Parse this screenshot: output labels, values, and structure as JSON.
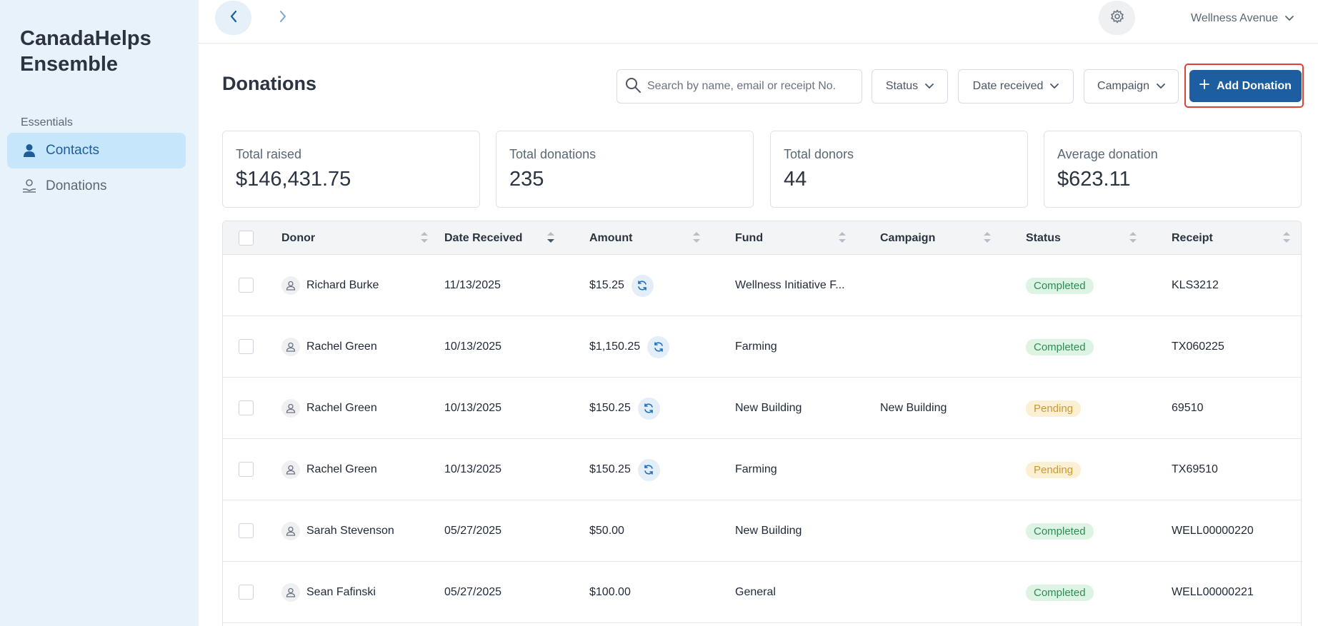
{
  "sidebar": {
    "brand": "CanadaHelps Ensemble",
    "section_label": "Essentials",
    "items": [
      {
        "label": "Contacts",
        "icon": "person-icon",
        "active": true
      },
      {
        "label": "Donations",
        "icon": "hand-donation-icon",
        "active": false
      }
    ]
  },
  "topbar": {
    "org_name": "Wellness Avenue"
  },
  "header": {
    "title": "Donations",
    "search_placeholder": "Search by name, email or receipt No.",
    "filters": {
      "status": "Status",
      "date_received": "Date received",
      "campaign": "Campaign"
    },
    "add_button": "Add Donation"
  },
  "stats": [
    {
      "label": "Total raised",
      "value": "$146,431.75"
    },
    {
      "label": "Total donations",
      "value": "235"
    },
    {
      "label": "Total donors",
      "value": "44"
    },
    {
      "label": "Average donation",
      "value": "$623.11"
    }
  ],
  "table": {
    "columns": [
      "Donor",
      "Date Received",
      "Amount",
      "Fund",
      "Campaign",
      "Status",
      "Receipt"
    ],
    "rows": [
      {
        "donor": "Richard Burke",
        "date": "11/13/2025",
        "amount": "$15.25",
        "recurring": true,
        "fund": "Wellness Initiative F...",
        "campaign": "",
        "status": "Completed",
        "receipt": "KLS3212"
      },
      {
        "donor": "Rachel Green",
        "date": "10/13/2025",
        "amount": "$1,150.25",
        "recurring": true,
        "fund": "Farming",
        "campaign": "",
        "status": "Completed",
        "receipt": "TX060225"
      },
      {
        "donor": "Rachel Green",
        "date": "10/13/2025",
        "amount": "$150.25",
        "recurring": true,
        "fund": "New Building",
        "campaign": "New Building",
        "status": "Pending",
        "receipt": "69510"
      },
      {
        "donor": "Rachel Green",
        "date": "10/13/2025",
        "amount": "$150.25",
        "recurring": true,
        "fund": "Farming",
        "campaign": "",
        "status": "Pending",
        "receipt": "TX69510"
      },
      {
        "donor": "Sarah Stevenson",
        "date": "05/27/2025",
        "amount": "$50.00",
        "recurring": false,
        "fund": "New Building",
        "campaign": "",
        "status": "Completed",
        "receipt": "WELL00000220"
      },
      {
        "donor": "Sean Fafinski",
        "date": "05/27/2025",
        "amount": "$100.00",
        "recurring": false,
        "fund": "General",
        "campaign": "",
        "status": "Completed",
        "receipt": "WELL00000221"
      }
    ]
  },
  "colors": {
    "sidebar_bg": "#e8f2fa",
    "active_nav_bg": "#c6e6fb",
    "primary": "#1d5ea0",
    "completed_bg": "#ddf3e4",
    "completed_text": "#2e8b57",
    "pending_bg": "#fbf0d4",
    "pending_text": "#c99a2e",
    "highlight_outline": "#e0403a"
  }
}
